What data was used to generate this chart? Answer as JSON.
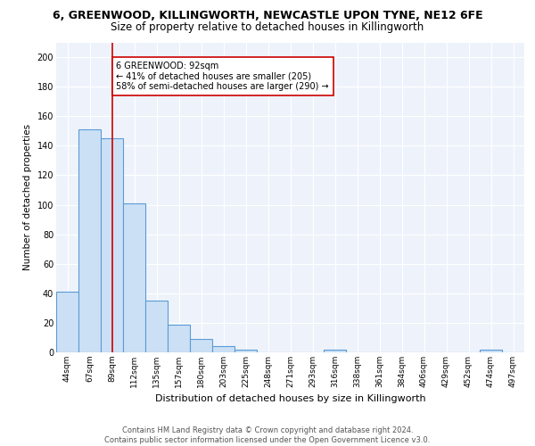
{
  "title_line1": "6, GREENWOOD, KILLINGWORTH, NEWCASTLE UPON TYNE, NE12 6FE",
  "title_line2": "Size of property relative to detached houses in Killingworth",
  "xlabel": "Distribution of detached houses by size in Killingworth",
  "ylabel": "Number of detached properties",
  "categories": [
    "44sqm",
    "67sqm",
    "89sqm",
    "112sqm",
    "135sqm",
    "157sqm",
    "180sqm",
    "203sqm",
    "225sqm",
    "248sqm",
    "271sqm",
    "293sqm",
    "316sqm",
    "338sqm",
    "361sqm",
    "384sqm",
    "406sqm",
    "429sqm",
    "452sqm",
    "474sqm",
    "497sqm"
  ],
  "values": [
    41,
    151,
    145,
    101,
    35,
    19,
    9,
    4,
    2,
    0,
    0,
    0,
    2,
    0,
    0,
    0,
    0,
    0,
    0,
    2,
    0
  ],
  "bar_color": "#cce0f5",
  "bar_edge_color": "#5b9bd5",
  "bar_edge_width": 0.8,
  "vline_x": 2,
  "vline_color": "#cc0000",
  "annotation_text": "6 GREENWOOD: 92sqm\n← 41% of detached houses are smaller (205)\n58% of semi-detached houses are larger (290) →",
  "annotation_box_color": "white",
  "annotation_box_edge": "#cc0000",
  "ylim": [
    0,
    210
  ],
  "yticks": [
    0,
    20,
    40,
    60,
    80,
    100,
    120,
    140,
    160,
    180,
    200
  ],
  "background_color": "#eef3fb",
  "grid_color": "white",
  "footer_text": "Contains HM Land Registry data © Crown copyright and database right 2024.\nContains public sector information licensed under the Open Government Licence v3.0.",
  "title1_fontsize": 9,
  "title2_fontsize": 8.5,
  "xlabel_fontsize": 8,
  "ylabel_fontsize": 7.5,
  "tick_fontsize": 6.5,
  "footer_fontsize": 6,
  "annot_fontsize": 7
}
